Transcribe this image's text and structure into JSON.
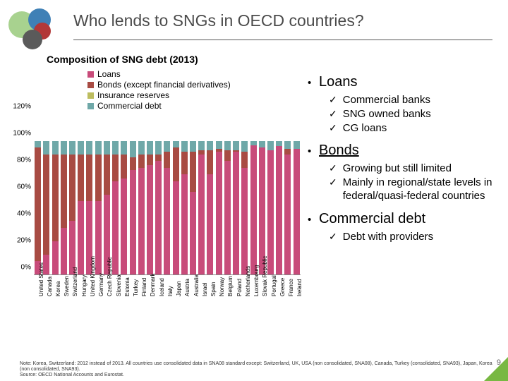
{
  "logo_colors": [
    "#a8d28f",
    "#3f80b6",
    "#b23838",
    "#5a5a5a"
  ],
  "title": "Who lends to SNGs in OECD countries?",
  "chart": {
    "title": "Composition of SNG debt (2013)",
    "type": "stacked-bar",
    "ylabel_suffix": "%",
    "ymax": 120,
    "ystep": 20,
    "series": [
      {
        "name": "Loans",
        "color": "#c84b7a"
      },
      {
        "name": "Bonds (except financial derivatives)",
        "color": "#a84b43"
      },
      {
        "name": "Insurance reserves",
        "color": "#bdbd5f"
      },
      {
        "name": "Commercial debt",
        "color": "#6fa8a8"
      }
    ],
    "categories": [
      "United States",
      "Canada",
      "Korea",
      "Sweden",
      "Switzerland",
      "Hungary",
      "United Kingdom",
      "Germany",
      "Czech Republic",
      "Slovenia",
      "Estonia",
      "Turkey",
      "Finland",
      "Denmark",
      "Iceland",
      "Italy",
      "Japan",
      "Austria",
      "Australia",
      "Israel",
      "Spain",
      "Norway",
      "Belgium",
      "Poland",
      "Netherlands",
      "Luxembourg",
      "Slovak Republic",
      "Portugal",
      "Greece",
      "France",
      "Ireland"
    ],
    "data": [
      [
        10,
        85,
        0,
        5
      ],
      [
        15,
        75,
        0,
        10
      ],
      [
        25,
        65,
        0,
        10
      ],
      [
        35,
        55,
        0,
        10
      ],
      [
        40,
        50,
        0,
        10
      ],
      [
        55,
        35,
        0,
        10
      ],
      [
        55,
        35,
        0,
        10
      ],
      [
        55,
        35,
        0,
        10
      ],
      [
        60,
        30,
        0,
        10
      ],
      [
        70,
        20,
        0,
        10
      ],
      [
        72,
        18,
        0,
        10
      ],
      [
        78,
        10,
        0,
        12
      ],
      [
        80,
        10,
        0,
        10
      ],
      [
        82,
        8,
        0,
        10
      ],
      [
        85,
        5,
        0,
        10
      ],
      [
        80,
        12,
        0,
        8
      ],
      [
        70,
        25,
        0,
        5
      ],
      [
        75,
        17,
        0,
        8
      ],
      [
        62,
        30,
        0,
        8
      ],
      [
        90,
        3,
        0,
        7
      ],
      [
        75,
        18,
        0,
        7
      ],
      [
        92,
        2,
        0,
        6
      ],
      [
        85,
        8,
        0,
        7
      ],
      [
        92,
        1,
        0,
        7
      ],
      [
        80,
        12,
        0,
        8
      ],
      [
        97,
        0,
        0,
        3
      ],
      [
        95,
        0,
        0,
        5
      ],
      [
        93,
        0,
        0,
        7
      ],
      [
        96,
        0,
        0,
        4
      ],
      [
        90,
        4,
        0,
        6
      ],
      [
        94,
        0,
        0,
        6
      ]
    ]
  },
  "bullets": [
    {
      "label": "Loans",
      "underline": false,
      "subs": [
        "Commercial banks",
        "SNG owned banks",
        "CG loans"
      ]
    },
    {
      "label": "Bonds",
      "underline": true,
      "subs": [
        "Growing but still limited",
        "Mainly in regional/state levels in federal/quasi-federal countries"
      ]
    },
    {
      "label": "Commercial debt",
      "underline": false,
      "subs": [
        "Debt with providers"
      ]
    }
  ],
  "note1": "Note: Korea, Switzerland: 2012 instead of 2013. All countries use consolidated data in SNA08 standard except: Switzerland, UK, USA (non consolidated, SNA08), Canada, Turkey (consolidated, SNA93), Japan, Korea (non consolidated, SNA93).",
  "note2": "Source: OECD National Accounts and Eurostat.",
  "page_number": "9",
  "triangle_color": "#78b843"
}
